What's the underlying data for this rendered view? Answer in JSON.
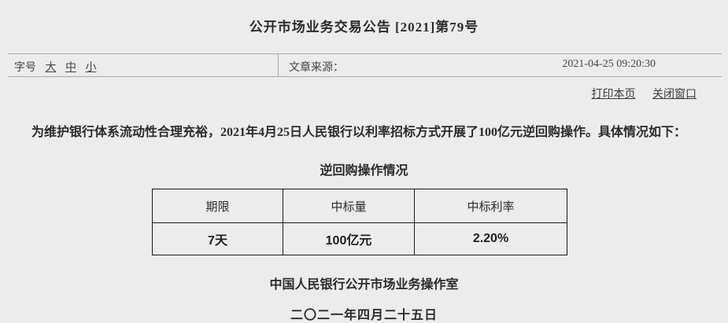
{
  "page": {
    "title": "公开市场业务交易公告 [2021]第79号",
    "toolbar": {
      "font_size_label": "字号",
      "font_size_options": [
        "大",
        "中",
        "小"
      ],
      "source_label": "文章来源：",
      "timestamp": "2021-04-25 09:20:30"
    },
    "actions": {
      "print_label": "打印本页",
      "close_label": "关闭窗口"
    }
  },
  "content": {
    "paragraph": "为维护银行体系流动性合理充裕，2021年4月25日人民银行以利率招标方式开展了100亿元逆回购操作。具体情况如下：",
    "table_title": "逆回购操作情况",
    "signature": "中国人民银行公开市场业务操作室",
    "date_cn": "二〇二一年四月二十五日"
  },
  "table": {
    "headers": [
      "期限",
      "中标量",
      "中标利率"
    ],
    "rows": [
      [
        "7天",
        "100亿元",
        "2.20%"
      ]
    ]
  },
  "colors": {
    "background": "#ececec",
    "text": "#2b2b2b",
    "divider_line": "#a9a9a9",
    "table_border": "#1a1a1a"
  }
}
